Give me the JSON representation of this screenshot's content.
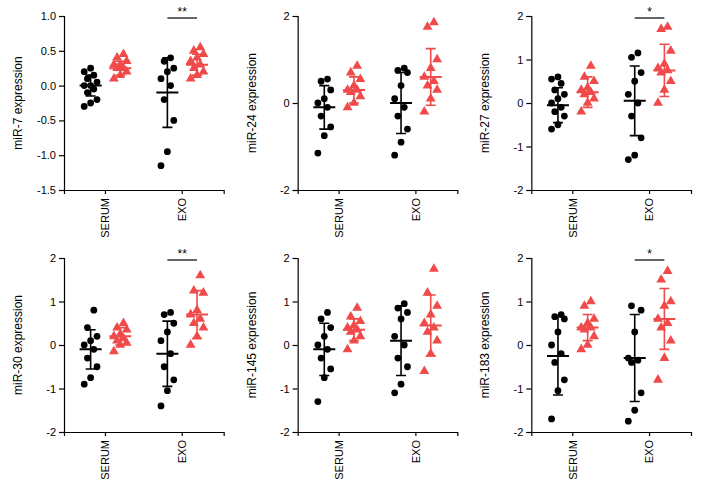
{
  "chart_data": [
    {
      "type": "scatter",
      "y_label": "miR-7 expression",
      "categories": [
        "SERUM",
        "EXO"
      ],
      "ylim": [
        -1.5,
        1.0
      ],
      "yticks": [
        -1.5,
        {
          "value": -1.0,
          "label": "-1.0"
        },
        -0.5,
        {
          "value": 0.0,
          "label": "0.0"
        },
        0.5,
        {
          "value": 1.0,
          "label": "1.0"
        }
      ],
      "series": [
        {
          "color": "#000000",
          "marker": "circle",
          "values": [
            [
              -0.3,
              -0.25,
              -0.2,
              -0.1,
              -0.05,
              0.0,
              0.0,
              0.05,
              0.1,
              0.15,
              0.2,
              0.25
            ],
            [
              -1.15,
              -0.95,
              -0.5,
              -0.2,
              0.0,
              0.1,
              0.2,
              0.25,
              0.35,
              0.4
            ]
          ],
          "mean": [
            0.0,
            -0.1
          ],
          "error": [
            0.15,
            0.5
          ]
        },
        {
          "color": "#f04a4a",
          "marker": "triangle",
          "values": [
            [
              0.1,
              0.15,
              0.2,
              0.25,
              0.25,
              0.3,
              0.3,
              0.35,
              0.4,
              0.45
            ],
            [
              0.1,
              0.15,
              0.2,
              0.25,
              0.3,
              0.35,
              0.4,
              0.45,
              0.5,
              0.55
            ]
          ],
          "mean": [
            0.25,
            0.3
          ],
          "error": [
            0.1,
            0.15
          ]
        }
      ],
      "annotations": [
        {
          "text": "**",
          "category": 1
        }
      ]
    },
    {
      "type": "scatter",
      "y_label": "miR-24 expression",
      "categories": [
        "SERUM",
        "EXO"
      ],
      "ylim": [
        -2,
        2
      ],
      "yticks": [
        -2,
        0,
        2
      ],
      "series": [
        {
          "color": "#000000",
          "marker": "circle",
          "values": [
            [
              -1.15,
              -0.75,
              -0.55,
              -0.3,
              -0.1,
              0.0,
              0.1,
              0.3,
              0.5,
              0.55
            ],
            [
              -1.2,
              -0.9,
              -0.6,
              -0.3,
              -0.1,
              0.1,
              0.4,
              0.7,
              0.75,
              0.8
            ]
          ],
          "mean": [
            -0.1,
            0.0
          ],
          "error": [
            0.5,
            0.7
          ]
        },
        {
          "color": "#f04a4a",
          "marker": "triangle",
          "values": [
            [
              -0.1,
              0.0,
              0.15,
              0.25,
              0.3,
              0.3,
              0.4,
              0.55,
              0.7,
              0.85
            ],
            [
              -0.2,
              0.1,
              0.3,
              0.4,
              0.5,
              0.6,
              0.8,
              1.0,
              1.75,
              1.85
            ]
          ],
          "mean": [
            0.3,
            0.6
          ],
          "error": [
            0.3,
            0.65
          ]
        }
      ],
      "annotations": []
    },
    {
      "type": "scatter",
      "y_label": "miR-27 expression",
      "categories": [
        "SERUM",
        "EXO"
      ],
      "ylim": [
        -2,
        2
      ],
      "yticks": [
        -2,
        -1,
        0,
        1,
        2
      ],
      "series": [
        {
          "color": "#000000",
          "marker": "circle",
          "values": [
            [
              -0.6,
              -0.5,
              -0.3,
              -0.2,
              -0.1,
              0.0,
              0.1,
              0.2,
              0.3,
              0.45,
              0.55,
              0.6
            ],
            [
              -1.3,
              -1.2,
              -0.8,
              -0.3,
              0.0,
              0.2,
              0.5,
              0.7,
              1.05,
              1.15
            ]
          ],
          "mean": [
            -0.05,
            0.05
          ],
          "error": [
            0.4,
            0.8
          ]
        },
        {
          "color": "#f04a4a",
          "marker": "triangle",
          "values": [
            [
              -0.2,
              0.0,
              0.1,
              0.2,
              0.25,
              0.3,
              0.35,
              0.5,
              0.6,
              0.85
            ],
            [
              0.0,
              0.3,
              0.5,
              0.7,
              0.75,
              0.8,
              0.9,
              1.2,
              1.7,
              1.75
            ]
          ],
          "mean": [
            0.25,
            0.75
          ],
          "error": [
            0.35,
            0.6
          ]
        }
      ],
      "annotations": [
        {
          "text": "*",
          "category": 1
        }
      ]
    },
    {
      "type": "scatter",
      "y_label": "miR-30 expression",
      "categories": [
        "SERUM",
        "EXO"
      ],
      "ylim": [
        -2,
        2
      ],
      "yticks": [
        -2,
        -1,
        0,
        1,
        2
      ],
      "series": [
        {
          "color": "#000000",
          "marker": "circle",
          "values": [
            [
              -0.9,
              -0.75,
              -0.5,
              -0.3,
              -0.1,
              0.0,
              0.1,
              0.2,
              0.4,
              0.8
            ],
            [
              -1.4,
              -1.05,
              -0.8,
              -0.5,
              -0.2,
              0.1,
              0.3,
              0.5,
              0.7,
              0.75
            ]
          ],
          "mean": [
            -0.1,
            -0.2
          ],
          "error": [
            0.45,
            0.75
          ]
        },
        {
          "color": "#f04a4a",
          "marker": "triangle",
          "values": [
            [
              -0.15,
              0.0,
              0.05,
              0.1,
              0.15,
              0.2,
              0.25,
              0.35,
              0.4,
              0.5
            ],
            [
              0.0,
              0.2,
              0.4,
              0.5,
              0.6,
              0.7,
              0.8,
              1.2,
              1.25,
              1.6
            ]
          ],
          "mean": [
            0.2,
            0.7
          ],
          "error": [
            0.2,
            0.55
          ]
        }
      ],
      "annotations": [
        {
          "text": "**",
          "category": 1
        }
      ]
    },
    {
      "type": "scatter",
      "y_label": "miR-145 expression",
      "categories": [
        "SERUM",
        "EXO"
      ],
      "ylim": [
        -2,
        2
      ],
      "yticks": [
        -2,
        -1,
        0,
        1,
        2
      ],
      "series": [
        {
          "color": "#000000",
          "marker": "circle",
          "values": [
            [
              -1.3,
              -0.75,
              -0.55,
              -0.3,
              -0.1,
              0.0,
              0.2,
              0.4,
              0.6,
              0.75
            ],
            [
              -1.1,
              -0.9,
              -0.5,
              -0.3,
              0.0,
              0.2,
              0.6,
              0.75,
              0.85,
              0.95
            ]
          ],
          "mean": [
            -0.1,
            0.1
          ],
          "error": [
            0.6,
            0.8
          ]
        },
        {
          "color": "#f04a4a",
          "marker": "triangle",
          "values": [
            [
              -0.1,
              0.1,
              0.2,
              0.3,
              0.35,
              0.4,
              0.45,
              0.55,
              0.65,
              0.85
            ],
            [
              -0.6,
              -0.2,
              0.1,
              0.3,
              0.4,
              0.5,
              0.7,
              0.9,
              1.2,
              1.75
            ]
          ],
          "mean": [
            0.35,
            0.45
          ],
          "error": [
            0.25,
            0.7
          ]
        }
      ],
      "annotations": []
    },
    {
      "type": "scatter",
      "y_label": "miR-183 expression",
      "categories": [
        "SERUM",
        "EXO"
      ],
      "ylim": [
        -2,
        2
      ],
      "yticks": [
        -2,
        -1,
        0,
        1,
        2
      ],
      "series": [
        {
          "color": "#000000",
          "marker": "circle",
          "values": [
            [
              -1.7,
              -1.05,
              -0.8,
              -0.4,
              -0.2,
              0.0,
              0.3,
              0.6,
              0.65,
              0.7
            ],
            [
              -1.75,
              -1.5,
              -1.1,
              -0.4,
              -0.35,
              -0.3,
              0.3,
              0.8,
              0.9
            ]
          ],
          "mean": [
            -0.25,
            -0.3
          ],
          "error": [
            0.9,
            1.0
          ]
        },
        {
          "color": "#f04a4a",
          "marker": "triangle",
          "values": [
            [
              -0.1,
              0.0,
              0.2,
              0.35,
              0.4,
              0.4,
              0.5,
              0.6,
              0.9,
              1.0
            ],
            [
              -0.8,
              -0.3,
              0.1,
              0.4,
              0.5,
              0.6,
              0.9,
              1.0,
              1.5,
              1.7
            ]
          ],
          "mean": [
            0.4,
            0.6
          ],
          "error": [
            0.3,
            0.7
          ]
        }
      ],
      "annotations": [
        {
          "text": "*",
          "category": 1
        }
      ]
    }
  ]
}
